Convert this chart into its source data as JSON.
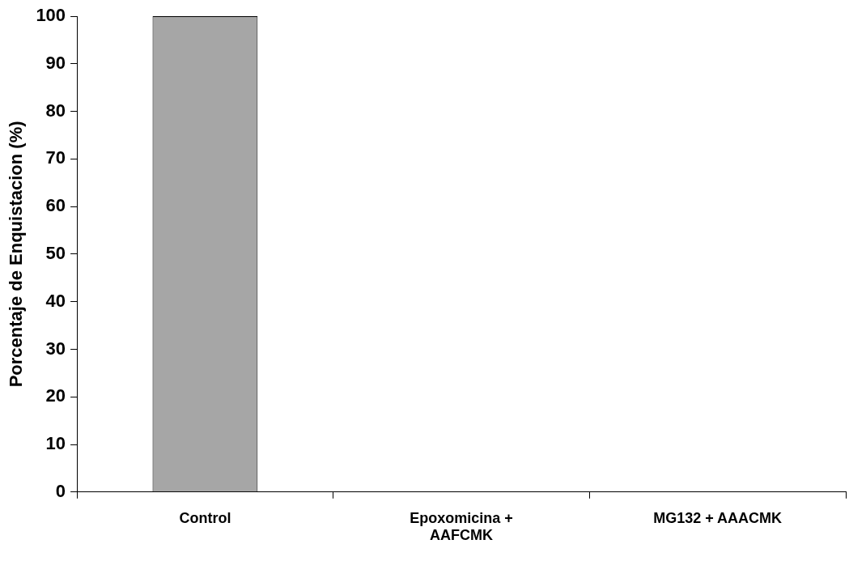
{
  "chart_data": {
    "type": "bar",
    "ylabel": "Porcentaje de Enquistacion (%)",
    "categories": [
      "Control",
      "Epoxomicina + AAFCMK",
      "MG132 + AAACMK"
    ],
    "values": [
      100,
      0,
      0
    ],
    "color": "#a6a6a6",
    "ylim": [
      0,
      100
    ],
    "yticks": [
      0,
      10,
      20,
      30,
      40,
      50,
      60,
      70,
      80,
      90,
      100
    ],
    "grid": false,
    "legend": false
  }
}
